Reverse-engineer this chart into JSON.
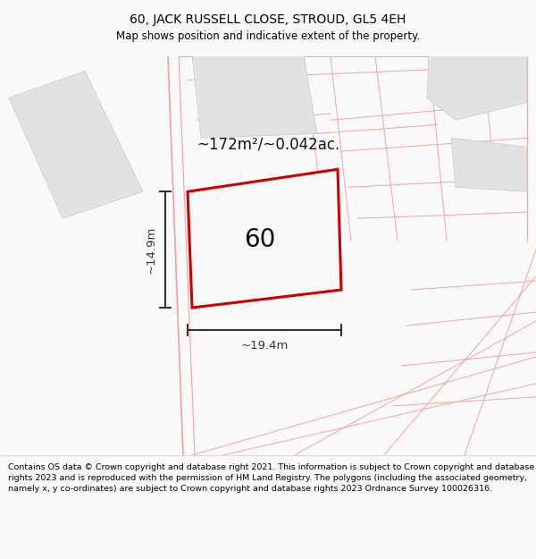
{
  "title": "60, JACK RUSSELL CLOSE, STROUD, GL5 4EH",
  "subtitle": "Map shows position and indicative extent of the property.",
  "footer": "Contains OS data © Crown copyright and database right 2021. This information is subject to Crown copyright and database rights 2023 and is reproduced with the permission of HM Land Registry. The polygons (including the associated geometry, namely x, y co-ordinates) are subject to Crown copyright and database rights 2023 Ordnance Survey 100026316.",
  "area_label": "~172m²/~0.042ac.",
  "width_label": "~19.4m",
  "height_label": "~14.9m",
  "property_number": "60",
  "bg_color": "#f9f9f9",
  "map_bg": "#ffffff",
  "cadastral_color": "#f5a0a0",
  "building_fill": "#e2e2e2",
  "main_plot_fill": "#f8f8f8",
  "main_plot_stroke": "#cc0000",
  "dim_color": "#333333",
  "text_color": "#111111",
  "title_fontsize": 10,
  "subtitle_fontsize": 8.5,
  "footer_fontsize": 6.8,
  "area_fontsize": 12,
  "number_fontsize": 20,
  "dim_fontsize": 9.5
}
